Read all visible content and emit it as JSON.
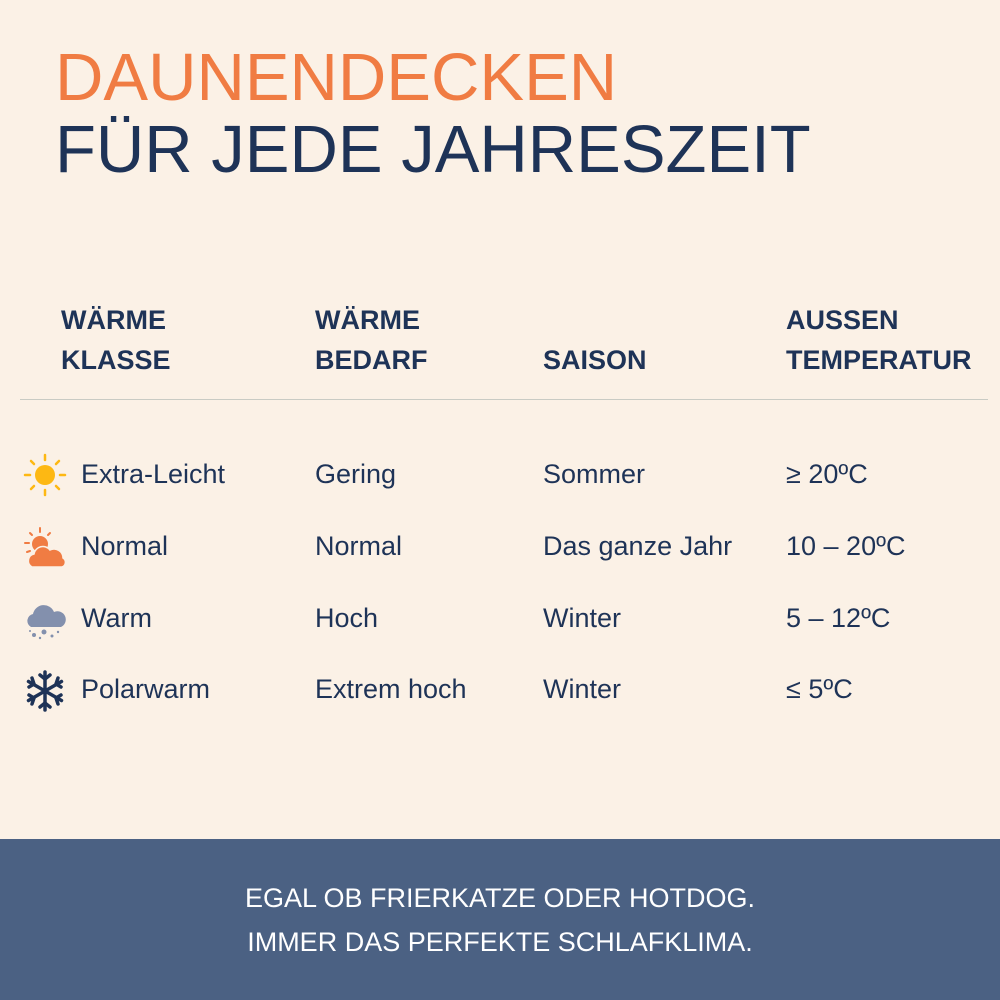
{
  "title": {
    "line1": "DAUNENDECKEN",
    "line2": "FÜR JEDE JAHRESZEIT"
  },
  "colors": {
    "accent": "#f07c43",
    "navy": "#1e3357",
    "background": "#fbf1e6",
    "footer": "#4b6183",
    "sun": "#fdb813",
    "cloud_snow": "#8390ad"
  },
  "table": {
    "headers": [
      {
        "l1": "WÄRME",
        "l2": "KLASSE"
      },
      {
        "l1": "WÄRME",
        "l2": "BEDARF"
      },
      {
        "l1": "",
        "l2": "SAISON"
      },
      {
        "l1": "AUSSEN",
        "l2": "TEMPERATUR"
      }
    ],
    "rows": [
      {
        "icon": "sun-icon",
        "klasse": "Extra-Leicht",
        "bedarf": "Gering",
        "saison": "Sommer",
        "temp": "≥ 20ºC"
      },
      {
        "icon": "sun-behind-cloud-icon",
        "klasse": "Normal",
        "bedarf": "Normal",
        "saison": "Das ganze Jahr",
        "temp": "10 – 20ºC"
      },
      {
        "icon": "snow-cloud-icon",
        "klasse": "Warm",
        "bedarf": "Hoch",
        "saison": "Winter",
        "temp": "5 – 12ºC"
      },
      {
        "icon": "snowflake-icon",
        "klasse": "Polarwarm",
        "bedarf": "Extrem hoch",
        "saison": "Winter",
        "temp": "≤ 5ºC"
      }
    ]
  },
  "footer": {
    "line1": "EGAL OB FRIERKATZE ODER HOTDOG.",
    "line2": "IMMER DAS PERFEKTE SCHLAFKLIMA."
  }
}
